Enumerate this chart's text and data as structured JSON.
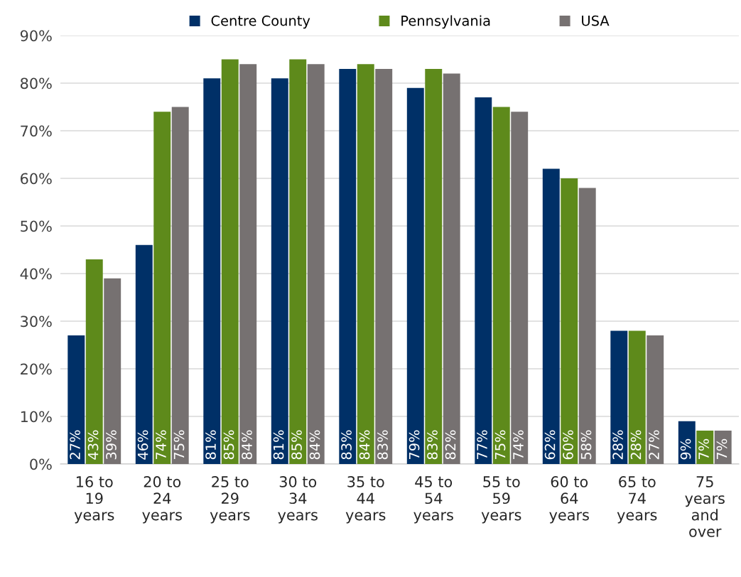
{
  "chart_data": {
    "type": "bar",
    "categories": [
      "16 to 19 years",
      "20 to 24 years",
      "25 to 29 years",
      "30 to 34 years",
      "35 to 44 years",
      "45 to 54 years",
      "55 to 59 years",
      "60 to 64 years",
      "65 to 74 years",
      "75 years and over"
    ],
    "series": [
      {
        "name": "Centre County",
        "color": "#003067",
        "values": [
          27,
          46,
          81,
          81,
          83,
          79,
          77,
          62,
          28,
          9
        ],
        "value_labels": [
          "27%",
          "46%",
          "81%",
          "81%",
          "83%",
          "79%",
          "77%",
          "62%",
          "28%",
          "9%"
        ]
      },
      {
        "name": "Pennsylvania",
        "color": "#5e8a1b",
        "values": [
          43,
          74,
          85,
          85,
          84,
          83,
          75,
          60,
          28,
          7
        ],
        "value_labels": [
          "43%",
          "74%",
          "85%",
          "85%",
          "84%",
          "83%",
          "75%",
          "60%",
          "28%",
          "7%"
        ]
      },
      {
        "name": "USA",
        "color": "#767171",
        "values": [
          39,
          75,
          84,
          84,
          83,
          82,
          74,
          58,
          27,
          7
        ],
        "value_labels": [
          "39%",
          "75%",
          "84%",
          "84%",
          "83%",
          "82%",
          "74%",
          "58%",
          "27%",
          "7%"
        ]
      }
    ],
    "ylim": [
      0,
      90
    ],
    "yticks": [
      {
        "value": 0,
        "label": "0%"
      },
      {
        "value": 10,
        "label": "10%"
      },
      {
        "value": 20,
        "label": "20%"
      },
      {
        "value": 30,
        "label": "30%"
      },
      {
        "value": 40,
        "label": "40%"
      },
      {
        "value": 50,
        "label": "50%"
      },
      {
        "value": 60,
        "label": "60%"
      },
      {
        "value": 70,
        "label": "70%"
      },
      {
        "value": 80,
        "label": "80%"
      },
      {
        "value": 90,
        "label": "90%"
      }
    ],
    "grid": "y",
    "legend": "top"
  }
}
